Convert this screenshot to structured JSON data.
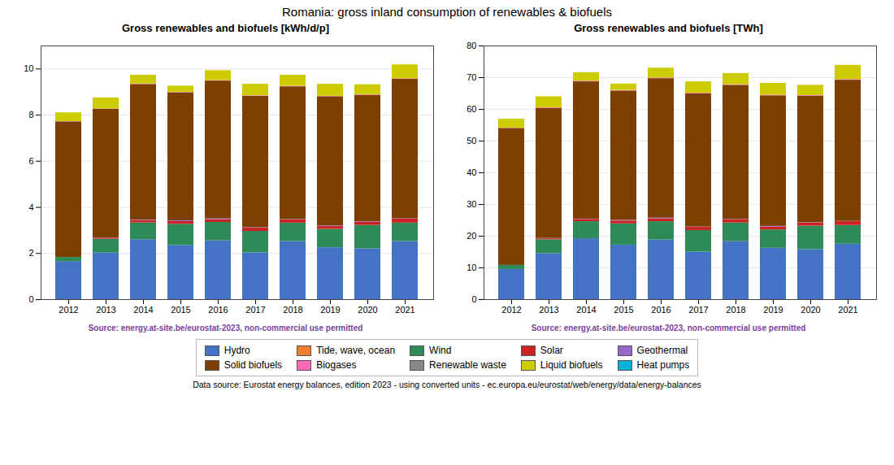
{
  "title": "Romania: gross inland consumption of renewables & biofuels",
  "annotations": [
    "Data source: Eurostat energy balances, edition 2023 - using converted units - ec.europa.eu/eurostat/web/energy/data/energy-balances"
  ],
  "chart_data": [
    {
      "type": "bar",
      "stacked": true,
      "grid": true,
      "legend": "bottom",
      "subtitle": "Gross renewables and biofuels [kWh/d/p]",
      "annotations": [
        {
          "text": "Source: energy.at-site.be/eurostat-2023, non-commercial use permitted",
          "color": "#7b3f9e"
        }
      ],
      "categories": [
        "2012",
        "2013",
        "2014",
        "2015",
        "2016",
        "2017",
        "2018",
        "2019",
        "2020",
        "2021"
      ],
      "ylim": [
        0,
        11.0
      ],
      "yticks": [
        0,
        2,
        4,
        6,
        8,
        10
      ],
      "series": [
        {
          "name": "Hydro",
          "color": "#4472c4",
          "values": [
            1.65,
            2.02,
            2.6,
            2.35,
            2.55,
            2.03,
            2.52,
            2.25,
            2.2,
            2.52
          ]
        },
        {
          "name": "Tide, wave, ocean",
          "color": "#ed7d31",
          "values": [
            0.0,
            0.0,
            0.0,
            0.0,
            0.0,
            0.0,
            0.0,
            0.0,
            0.0,
            0.0
          ]
        },
        {
          "name": "Wind",
          "color": "#2e8b57",
          "values": [
            0.18,
            0.6,
            0.73,
            0.92,
            0.8,
            0.93,
            0.8,
            0.8,
            1.02,
            0.8
          ]
        },
        {
          "name": "Solar",
          "color": "#cc2222",
          "values": [
            0.0,
            0.05,
            0.1,
            0.12,
            0.12,
            0.14,
            0.14,
            0.12,
            0.14,
            0.17
          ]
        },
        {
          "name": "Geothermal",
          "color": "#9966cc",
          "values": [
            0.0,
            0.01,
            0.02,
            0.03,
            0.03,
            0.02,
            0.02,
            0.03,
            0.02,
            0.02
          ]
        },
        {
          "name": "Solid biofuels",
          "color": "#7b3f00",
          "values": [
            5.88,
            5.58,
            5.88,
            5.55,
            5.98,
            5.7,
            5.75,
            5.6,
            5.48,
            6.05
          ]
        },
        {
          "name": "Biogases",
          "color": "#ff69b4",
          "values": [
            0.01,
            0.01,
            0.02,
            0.02,
            0.02,
            0.02,
            0.02,
            0.02,
            0.02,
            0.02
          ]
        },
        {
          "name": "Renewable waste",
          "color": "#888888",
          "values": [
            0.0,
            0.0,
            0.0,
            0.0,
            0.0,
            0.0,
            0.0,
            0.0,
            0.0,
            0.0
          ]
        },
        {
          "name": "Liquid biofuels",
          "color": "#cccc00",
          "values": [
            0.38,
            0.48,
            0.38,
            0.27,
            0.43,
            0.5,
            0.48,
            0.52,
            0.44,
            0.6
          ]
        },
        {
          "name": "Heat pumps",
          "color": "#00b4d8",
          "values": [
            0.0,
            0.0,
            0.0,
            0.0,
            0.0,
            0.0,
            0.0,
            0.0,
            0.0,
            0.0
          ]
        }
      ]
    },
    {
      "type": "bar",
      "stacked": true,
      "grid": true,
      "legend": "bottom",
      "subtitle": "Gross renewables and biofuels [TWh]",
      "annotations": [
        {
          "text": "Source: energy.at-site.be/eurostat-2023, non-commercial use permitted",
          "color": "#7b3f9e"
        }
      ],
      "categories": [
        "2012",
        "2013",
        "2014",
        "2015",
        "2016",
        "2017",
        "2018",
        "2019",
        "2020",
        "2021"
      ],
      "ylim": [
        0,
        80
      ],
      "yticks": [
        0,
        10,
        20,
        30,
        40,
        50,
        60,
        70,
        80
      ],
      "series": [
        {
          "name": "Hydro",
          "color": "#4472c4",
          "values": [
            9.5,
            14.5,
            19.2,
            17.2,
            18.8,
            15.0,
            18.3,
            16.2,
            15.8,
            17.5
          ]
        },
        {
          "name": "Tide, wave, ocean",
          "color": "#ed7d31",
          "values": [
            0.0,
            0.0,
            0.0,
            0.0,
            0.0,
            0.0,
            0.0,
            0.0,
            0.0,
            0.0
          ]
        },
        {
          "name": "Wind",
          "color": "#2e8b57",
          "values": [
            1.3,
            4.4,
            5.4,
            6.7,
            5.8,
            6.8,
            5.9,
            5.8,
            7.4,
            5.9
          ]
        },
        {
          "name": "Solar",
          "color": "#cc2222",
          "values": [
            0.0,
            0.3,
            0.7,
            0.9,
            0.9,
            1.0,
            1.0,
            0.9,
            1.0,
            1.2
          ]
        },
        {
          "name": "Geothermal",
          "color": "#9966cc",
          "values": [
            0.0,
            0.1,
            0.1,
            0.2,
            0.2,
            0.1,
            0.1,
            0.2,
            0.1,
            0.1
          ]
        },
        {
          "name": "Solid biofuels",
          "color": "#7b3f00",
          "values": [
            43.2,
            41.0,
            43.3,
            40.8,
            44.0,
            42.0,
            42.3,
            41.2,
            39.9,
            44.5
          ]
        },
        {
          "name": "Biogases",
          "color": "#ff69b4",
          "values": [
            0.1,
            0.2,
            0.2,
            0.2,
            0.2,
            0.2,
            0.2,
            0.2,
            0.2,
            0.2
          ]
        },
        {
          "name": "Renewable waste",
          "color": "#888888",
          "values": [
            0.0,
            0.0,
            0.0,
            0.0,
            0.0,
            0.0,
            0.0,
            0.0,
            0.0,
            0.0
          ]
        },
        {
          "name": "Liquid biofuels",
          "color": "#cccc00",
          "values": [
            2.8,
            3.5,
            2.7,
            2.0,
            3.1,
            3.6,
            3.5,
            3.7,
            3.2,
            4.5
          ]
        },
        {
          "name": "Heat pumps",
          "color": "#00b4d8",
          "values": [
            0.0,
            0.0,
            0.0,
            0.0,
            0.0,
            0.0,
            0.0,
            0.0,
            0.0,
            0.0
          ]
        }
      ]
    }
  ]
}
